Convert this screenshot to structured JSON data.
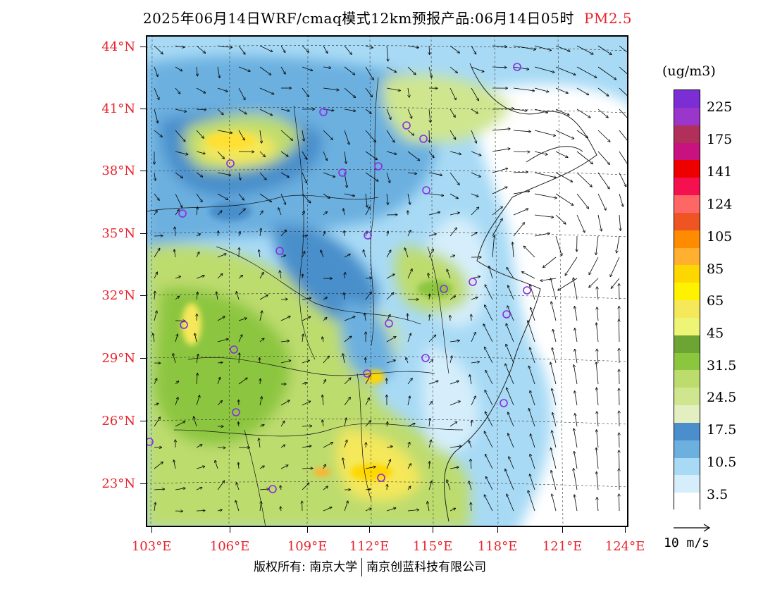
{
  "header": {
    "title": "2025年06月14日WRF/cmaq模式12km预报产品:06月14日05时",
    "pollutant": "PM2.5"
  },
  "axes": {
    "lat_labels": [
      "44°N",
      "41°N",
      "38°N",
      "35°N",
      "32°N",
      "29°N",
      "26°N",
      "23°N"
    ],
    "lon_labels": [
      "103°E",
      "106°E",
      "109°E",
      "112°E",
      "115°E",
      "118°E",
      "121°E",
      "124°E"
    ]
  },
  "legend": {
    "unit": "(ug/m3)",
    "labels": [
      "225",
      "175",
      "141",
      "124",
      "105",
      "85",
      "65",
      "45",
      "31.5",
      "24.5",
      "17.5",
      "10.5",
      "3.5"
    ],
    "colors_top_to_bottom": [
      "#7b2ed3",
      "#9b36cc",
      "#b0305a",
      "#c8127f",
      "#ee0000",
      "#f5114f",
      "#ff6666",
      "#ef5522",
      "#ff8c00",
      "#ffb02e",
      "#ffd700",
      "#fff200",
      "#f5e85a",
      "#eef576",
      "#6da534",
      "#8cc63f",
      "#bddc6e",
      "#cfe68f",
      "#e3efc1",
      "#4a8fcb",
      "#6cb0e0",
      "#a8daf5",
      "#d6eefb",
      "#ffffff"
    ]
  },
  "wind_key": {
    "label": "10 m/s"
  },
  "footer": {
    "copyright": "版权所有: 南京大学",
    "company": "南京创蓝科技有限公司"
  },
  "map": {
    "stations": [
      [
        13,
        0.9
      ],
      [
        14,
        0.9
      ],
      [
        15,
        0.95
      ],
      [
        10,
        0.6
      ],
      [
        7,
        0.28
      ],
      [
        11,
        0.5
      ],
      [
        9,
        0.45
      ],
      [
        16,
        0.85
      ],
      [
        4,
        0.55
      ],
      [
        17,
        0.6
      ],
      [
        18,
        0.4
      ],
      [
        6,
        0.25
      ],
      [
        12,
        0.65
      ],
      [
        5,
        0.2
      ],
      [
        19,
        0.05
      ],
      [
        3,
        0.75
      ],
      [
        8,
        0.35
      ],
      [
        2,
        0.15
      ],
      [
        1,
        0.1
      ],
      [
        20,
        0.3
      ],
      [
        21,
        0.7
      ],
      [
        22,
        0.8
      ],
      [
        23,
        0.55
      ],
      [
        24,
        0.45
      ]
    ]
  }
}
